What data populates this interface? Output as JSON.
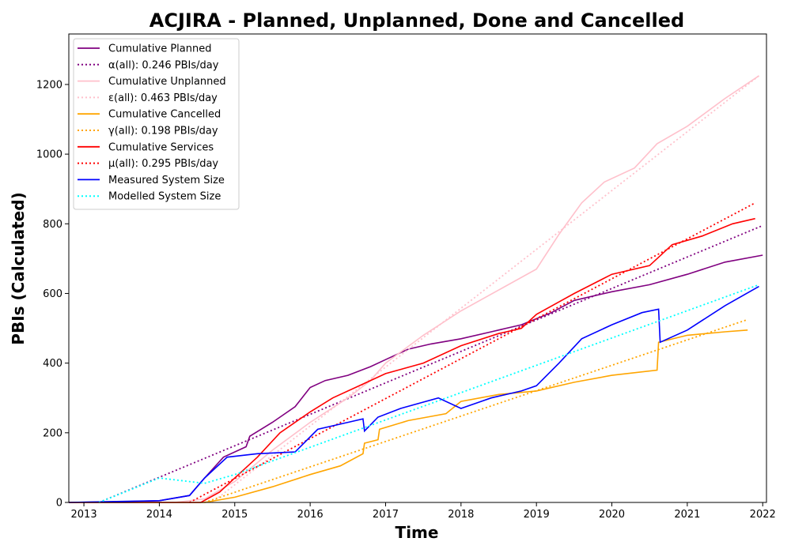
{
  "chart_data": {
    "type": "line",
    "title": "ACJIRA - Planned, Unplanned, Done  and Cancelled",
    "xlabel": "Time",
    "ylabel": "PBIs (Calculated)",
    "xlim": [
      2012.8,
      2022.05
    ],
    "ylim": [
      0,
      1345
    ],
    "xticks": [
      2013,
      2014,
      2015,
      2016,
      2017,
      2018,
      2019,
      2020,
      2021,
      2022
    ],
    "yticks": [
      0,
      200,
      400,
      600,
      800,
      1000,
      1200
    ],
    "grid": false,
    "legend_position": "top-left",
    "series": [
      {
        "name": "Cumulative Planned",
        "color": "#800080",
        "style": "solid",
        "x": [
          2012.8,
          2013.5,
          2014.0,
          2014.4,
          2014.6,
          2014.85,
          2015.15,
          2015.2,
          2015.5,
          2015.8,
          2016.0,
          2016.2,
          2016.5,
          2016.8,
          2017.0,
          2017.3,
          2017.6,
          2018.0,
          2018.4,
          2018.8,
          2019.2,
          2019.5,
          2020.0,
          2020.5,
          2021.0,
          2021.5,
          2022.0
        ],
        "y": [
          0,
          2,
          5,
          20,
          70,
          130,
          160,
          190,
          230,
          275,
          330,
          350,
          365,
          390,
          410,
          440,
          455,
          470,
          490,
          510,
          545,
          580,
          605,
          625,
          655,
          690,
          710
        ]
      },
      {
        "name": "α(all): 0.246 PBIs/day",
        "color": "#800080",
        "style": "dotted",
        "x": [
          2013.2,
          2022.0
        ],
        "y": [
          0,
          795
        ]
      },
      {
        "name": "Cumulative Unplanned",
        "color": "#ffc0cb",
        "style": "solid",
        "x": [
          2012.8,
          2014.2,
          2014.6,
          2015.0,
          2015.5,
          2016.0,
          2016.5,
          2016.8,
          2017.0,
          2017.5,
          2018.0,
          2018.5,
          2019.0,
          2019.3,
          2019.6,
          2019.9,
          2020.3,
          2020.6,
          2021.0,
          2021.5,
          2021.95
        ],
        "y": [
          0,
          0,
          10,
          60,
          150,
          230,
          300,
          350,
          400,
          480,
          550,
          610,
          670,
          770,
          860,
          920,
          960,
          1030,
          1080,
          1160,
          1225
        ]
      },
      {
        "name": "ε(all): 0.463 PBIs/day",
        "color": "#ffc0cb",
        "style": "dotted",
        "x": [
          2014.7,
          2021.95
        ],
        "y": [
          0,
          1225
        ]
      },
      {
        "name": "Cumulative Cancelled",
        "color": "#ffa500",
        "style": "solid",
        "x": [
          2012.8,
          2014.6,
          2015.0,
          2015.5,
          2016.0,
          2016.4,
          2016.7,
          2016.72,
          2016.9,
          2016.92,
          2017.3,
          2017.8,
          2018.0,
          2018.5,
          2019.0,
          2019.5,
          2020.0,
          2020.6,
          2020.62,
          2021.0,
          2021.5,
          2021.8
        ],
        "y": [
          0,
          0,
          15,
          45,
          80,
          105,
          140,
          170,
          180,
          210,
          235,
          255,
          290,
          310,
          320,
          345,
          365,
          380,
          460,
          480,
          490,
          495
        ]
      },
      {
        "name": "γ(all): 0.198 PBIs/day",
        "color": "#ffa500",
        "style": "dotted",
        "x": [
          2014.6,
          2021.8
        ],
        "y": [
          0,
          525
        ]
      },
      {
        "name": "Cumulative Services",
        "color": "#ff0000",
        "style": "solid",
        "x": [
          2012.8,
          2014.55,
          2014.8,
          2015.0,
          2015.3,
          2015.6,
          2016.0,
          2016.3,
          2016.7,
          2017.0,
          2017.5,
          2018.0,
          2018.5,
          2018.8,
          2019.0,
          2019.5,
          2020.0,
          2020.5,
          2020.8,
          2021.2,
          2021.6,
          2021.9
        ],
        "y": [
          0,
          0,
          30,
          70,
          130,
          200,
          260,
          300,
          340,
          370,
          400,
          450,
          485,
          500,
          540,
          600,
          655,
          680,
          740,
          765,
          800,
          815
        ]
      },
      {
        "name": "μ(all): 0.295 PBIs/day",
        "color": "#ff0000",
        "style": "dotted",
        "x": [
          2014.4,
          2021.9
        ],
        "y": [
          0,
          860
        ]
      },
      {
        "name": "Measured System Size",
        "color": "#0000ff",
        "style": "solid",
        "x": [
          2012.8,
          2014.0,
          2014.4,
          2014.6,
          2014.9,
          2015.3,
          2015.8,
          2016.1,
          2016.5,
          2016.7,
          2016.72,
          2016.9,
          2017.2,
          2017.7,
          2018.0,
          2018.4,
          2018.8,
          2019.0,
          2019.3,
          2019.6,
          2020.0,
          2020.4,
          2020.62,
          2020.64,
          2021.0,
          2021.5,
          2021.95
        ],
        "y": [
          0,
          5,
          20,
          70,
          130,
          140,
          145,
          210,
          230,
          240,
          205,
          245,
          270,
          300,
          270,
          300,
          320,
          335,
          400,
          470,
          510,
          545,
          555,
          460,
          495,
          565,
          620
        ]
      },
      {
        "name": "Modelled System Size",
        "color": "#00ffff",
        "style": "dotted",
        "x": [
          2013.2,
          2014.0,
          2014.6,
          2015.0,
          2021.95
        ],
        "y": [
          0,
          70,
          55,
          80,
          625
        ]
      }
    ]
  }
}
